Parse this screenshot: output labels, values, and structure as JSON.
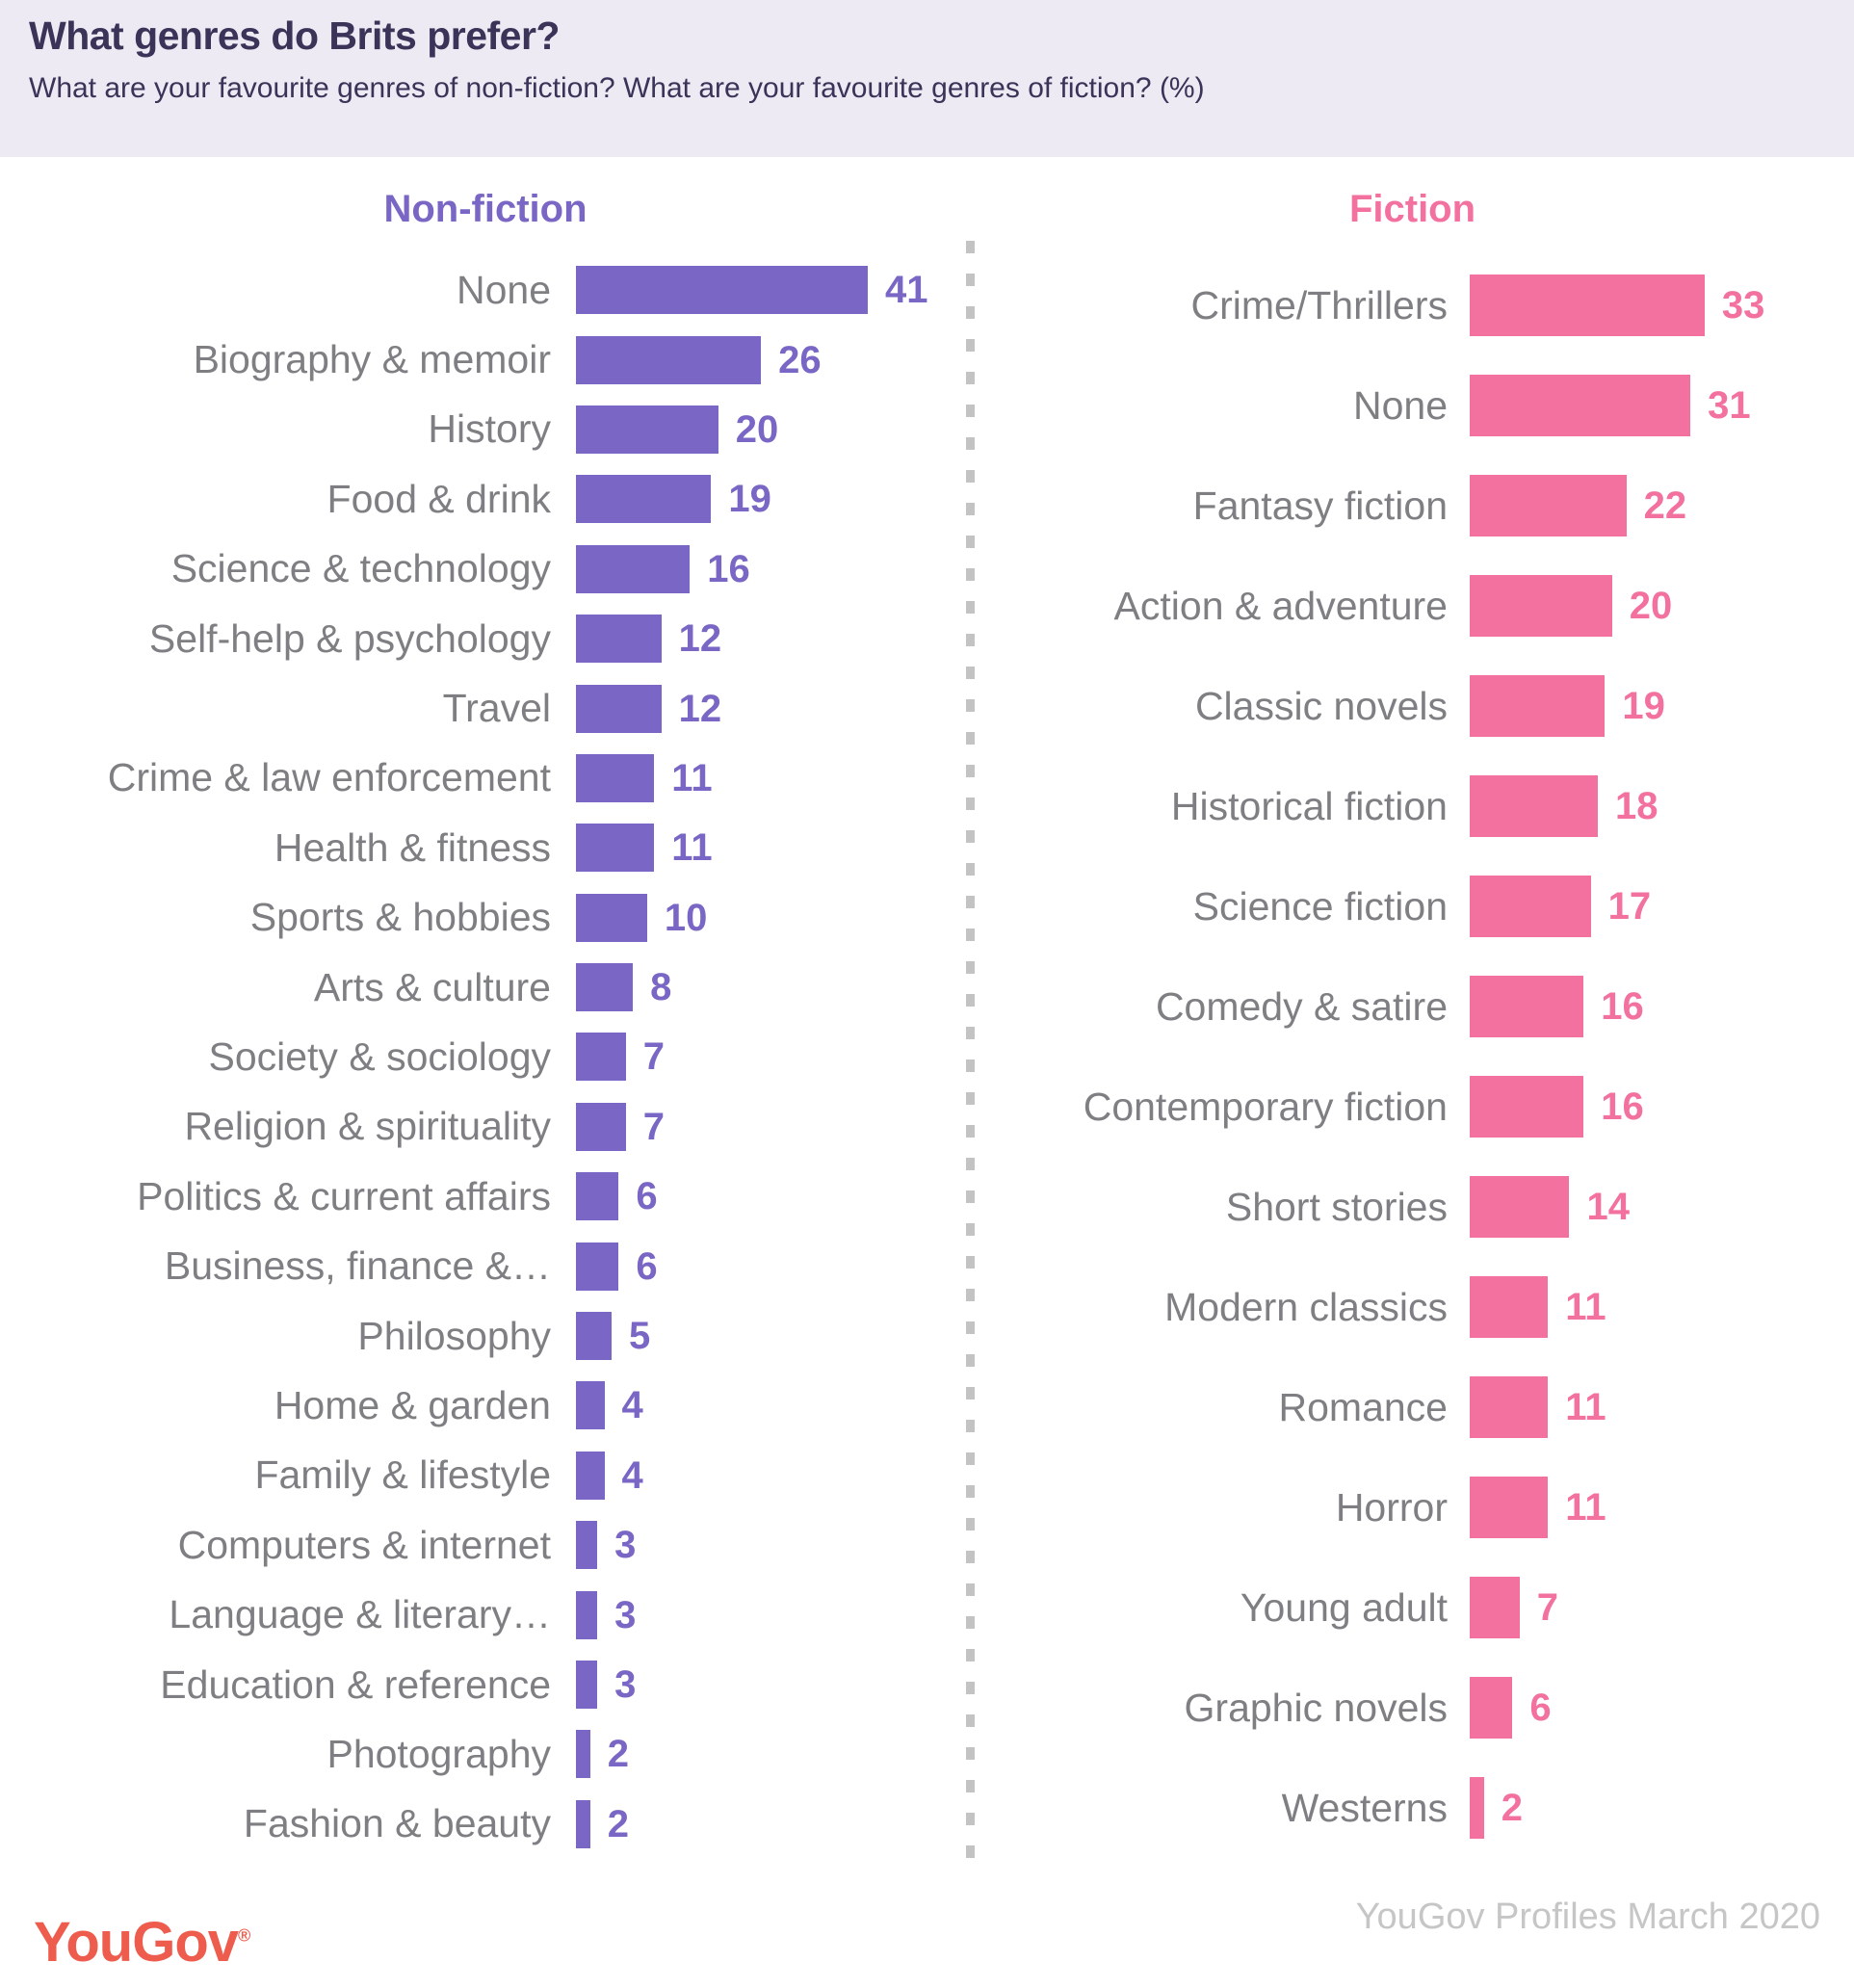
{
  "header": {
    "title": "What genres do Brits prefer?",
    "subtitle": "What are your favourite genres of non-fiction? What are your favourite genres of fiction? (%)"
  },
  "footer": {
    "logo_text": "YouGov",
    "logo_registered": "®",
    "source": "YouGov Profiles March 2020"
  },
  "colors": {
    "header_background": "#edeaf4",
    "title_text": "#3b3358",
    "nonfiction_purple": "#7a66c4",
    "fiction_pink": "#f3719f",
    "label_gray": "#7f7f83",
    "divider_gray": "#c3c3c3",
    "source_gray": "#c6c6c6",
    "logo_coral": "#ed5c4c"
  },
  "chart_data": [
    {
      "type": "bar",
      "title": "Non-fiction",
      "orientation": "horizontal",
      "color": "#7a66c4",
      "xlim": [
        0,
        41
      ],
      "value_unit": "percent",
      "categories": [
        "None",
        "Biography & memoir",
        "History",
        "Food & drink",
        "Science & technology",
        "Self-help & psychology",
        "Travel",
        "Crime & law enforcement",
        "Health & fitness",
        "Sports & hobbies",
        "Arts & culture",
        "Society & sociology",
        "Religion & spirituality",
        "Politics & current affairs",
        "Business, finance &…",
        "Philosophy",
        "Home & garden",
        "Family & lifestyle",
        "Computers & internet",
        "Language & literary…",
        "Education & reference",
        "Photography",
        "Fashion & beauty"
      ],
      "values": [
        41,
        26,
        20,
        19,
        16,
        12,
        12,
        11,
        11,
        10,
        8,
        7,
        7,
        6,
        6,
        5,
        4,
        4,
        3,
        3,
        3,
        2,
        2
      ]
    },
    {
      "type": "bar",
      "title": "Fiction",
      "orientation": "horizontal",
      "color": "#f3719f",
      "xlim": [
        0,
        41
      ],
      "value_unit": "percent",
      "categories": [
        "Crime/Thrillers",
        "None",
        "Fantasy fiction",
        "Action & adventure",
        "Classic novels",
        "Historical fiction",
        "Science fiction",
        "Comedy & satire",
        "Contemporary fiction",
        "Short stories",
        "Modern classics",
        "Romance",
        "Horror",
        "Young adult",
        "Graphic novels",
        "Westerns"
      ],
      "values": [
        33,
        31,
        22,
        20,
        19,
        18,
        17,
        16,
        16,
        14,
        11,
        11,
        11,
        7,
        6,
        2
      ]
    }
  ]
}
